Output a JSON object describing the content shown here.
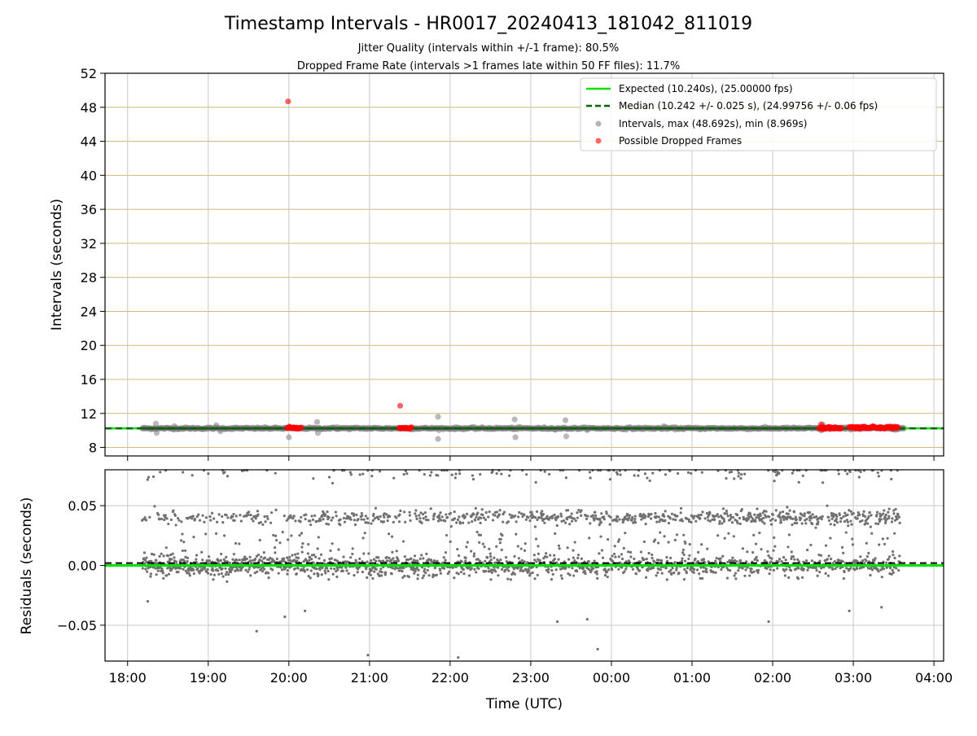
{
  "figure": {
    "title": "Timestamp Intervals - HR0017_20240413_181042_811019",
    "subtitle_1": "Jitter Quality (intervals within +/-1 frame): 80.5%",
    "subtitle_2": "Dropped Frame Rate (intervals >1 frames late within 50 FF files): 11.7%",
    "x_axis_label": "Time (UTC)"
  },
  "colors": {
    "expected_line": "#00e000",
    "median_line": "#006400",
    "intervals_points": "#808080",
    "dropped_points": "#ff0000",
    "hgrid_top": "#d4b87a",
    "grid": "#c8c8c8",
    "residual_points": "#707070"
  },
  "chart_data": [
    {
      "type": "scatter",
      "panel": "top",
      "ylabel": "Intervals (seconds)",
      "xlim": [
        17.72,
        28.12
      ],
      "ylim": [
        7.0,
        52.0
      ],
      "x_ticks": [
        "18:00",
        "19:00",
        "20:00",
        "21:00",
        "22:00",
        "23:00",
        "00:00",
        "01:00",
        "02:00",
        "03:00",
        "04:00"
      ],
      "x_tick_values": [
        18,
        19,
        20,
        21,
        22,
        23,
        24,
        25,
        26,
        27,
        28
      ],
      "y_ticks": [
        8,
        12,
        16,
        20,
        24,
        28,
        32,
        36,
        40,
        44,
        48,
        52
      ],
      "grid": true,
      "legend_position": "top-right",
      "legend": [
        {
          "key": "expected",
          "label": "Expected (10.240s), (25.00000 fps)"
        },
        {
          "key": "median",
          "label": "Median (10.242 +/- 0.025 s), (24.99756 +/- 0.06 fps)"
        },
        {
          "key": "intervals",
          "label": "Intervals, max (48.692s), min (8.969s)"
        },
        {
          "key": "dropped",
          "label": "Possible Dropped Frames"
        }
      ],
      "expected_value": 10.24,
      "median_value": 10.242,
      "series_range": [
        18.18,
        27.63
      ],
      "intervals_outliers": [
        {
          "x": 18.35,
          "y": 10.8
        },
        {
          "x": 18.36,
          "y": 9.7
        },
        {
          "x": 18.58,
          "y": 10.5
        },
        {
          "x": 19.1,
          "y": 10.6
        },
        {
          "x": 19.15,
          "y": 9.9
        },
        {
          "x": 20.0,
          "y": 9.2
        },
        {
          "x": 20.35,
          "y": 11.0
        },
        {
          "x": 20.36,
          "y": 9.7
        },
        {
          "x": 20.6,
          "y": 10.4
        },
        {
          "x": 21.85,
          "y": 11.6
        },
        {
          "x": 21.85,
          "y": 9.0
        },
        {
          "x": 22.8,
          "y": 11.3
        },
        {
          "x": 22.81,
          "y": 9.2
        },
        {
          "x": 23.43,
          "y": 11.2
        },
        {
          "x": 23.44,
          "y": 9.3
        },
        {
          "x": 24.65,
          "y": 10.5
        },
        {
          "x": 26.6,
          "y": 10.0
        },
        {
          "x": 26.62,
          "y": 10.7
        },
        {
          "x": 27.55,
          "y": 10.1
        }
      ],
      "dropped_points": [
        {
          "x": 19.99,
          "y": 48.69
        },
        {
          "x": 21.38,
          "y": 12.9
        },
        {
          "x": 26.6,
          "y": 10.7
        }
      ],
      "dropped_clusters": [
        {
          "x_start": 19.98,
          "x_end": 20.15,
          "y": 10.3,
          "count": 14
        },
        {
          "x_start": 21.37,
          "x_end": 21.52,
          "y": 10.3,
          "count": 12
        },
        {
          "x_start": 26.58,
          "x_end": 26.85,
          "y": 10.3,
          "count": 26
        },
        {
          "x_start": 26.95,
          "x_end": 27.55,
          "y": 10.35,
          "count": 60
        }
      ]
    },
    {
      "type": "scatter",
      "panel": "bottom",
      "ylabel": "Residuals (seconds)",
      "xlim": [
        17.72,
        28.12
      ],
      "ylim": [
        -0.08,
        0.08
      ],
      "y_ticks": [
        -0.05,
        0.0,
        0.05
      ],
      "y_tick_labels": [
        "−0.05",
        "0.00",
        "0.05"
      ],
      "grid": true,
      "expected_value": 0.0,
      "median_value": 0.002,
      "series_range": [
        18.18,
        27.58
      ],
      "band_centers": [
        0.0,
        0.04,
        0.08
      ],
      "residual_outliers": [
        {
          "x": 19.6,
          "y": -0.055
        },
        {
          "x": 19.95,
          "y": -0.043
        },
        {
          "x": 20.2,
          "y": -0.038
        },
        {
          "x": 20.98,
          "y": -0.075
        },
        {
          "x": 22.1,
          "y": -0.077
        },
        {
          "x": 23.33,
          "y": -0.047
        },
        {
          "x": 23.7,
          "y": -0.045
        },
        {
          "x": 23.83,
          "y": -0.07
        },
        {
          "x": 25.95,
          "y": -0.047
        },
        {
          "x": 26.95,
          "y": -0.038
        },
        {
          "x": 27.35,
          "y": -0.035
        },
        {
          "x": 18.25,
          "y": -0.03
        }
      ]
    }
  ]
}
